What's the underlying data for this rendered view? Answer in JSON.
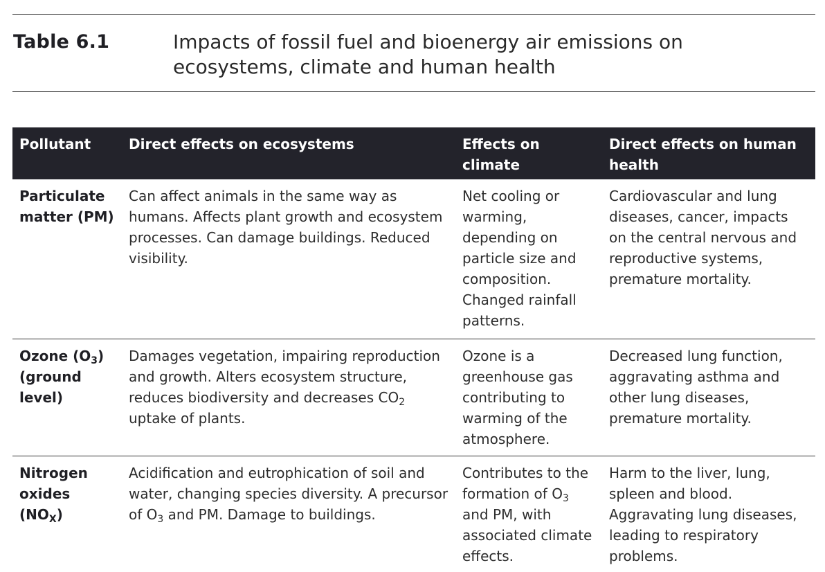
{
  "header": {
    "table_number": "Table 6.1",
    "title": "Impacts of fossil fuel and bioenergy air emissions on ecosystems, climate and human health"
  },
  "columns": [
    "Pollutant",
    "Direct effects on ecosystems",
    "Effects on climate",
    "Direct effects on human health"
  ],
  "rows": [
    {
      "pollutant": "Particulate matter (PM)",
      "ecosystems": "Can affect animals in the same way as humans. Affects plant growth and ecosystem processes. Can damage buildings. Reduced visibility.",
      "climate": "Net cooling or warming, depending on particle size and composition. Changed rainfall patterns.",
      "health": "Cardiovascular and lung diseases, cancer, impacts on the central nervous and reproductive systems, premature mortality."
    },
    {
      "pollutant_parts": [
        "Ozone (O",
        "3",
        ") (ground level)"
      ],
      "ecosystems_parts": [
        "Damages vegetation, impairing reproduction and growth. Alters ecosystem structure, reduces biodiversity and decreases CO",
        "2",
        " uptake of plants."
      ],
      "climate": "Ozone is a greenhouse gas contributing to warming of the atmosphere.",
      "health": "Decreased lung function, aggravating asthma and other lung diseases, premature mortality."
    },
    {
      "pollutant_parts": [
        "Nitrogen oxides (NO",
        "X",
        ")"
      ],
      "ecosystems_parts": [
        "Acidification and eutrophication of soil and water, changing species diversity. A precursor of O",
        "3",
        " and PM. Damage to buildings."
      ],
      "climate_parts": [
        "Contributes to the formation of O",
        "3",
        " and PM, with associated climate effects."
      ],
      "health": "Harm to the liver, lung, spleen and blood. Aggravating lung diseases, leading to respiratory problems."
    }
  ]
}
